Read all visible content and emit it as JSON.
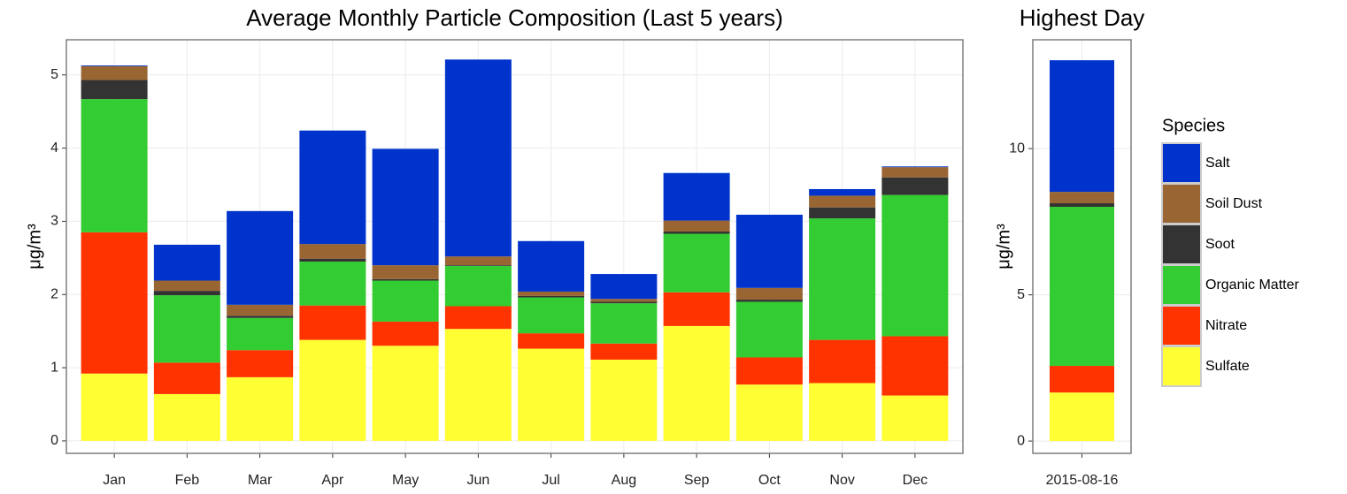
{
  "chart_data": [
    {
      "type": "bar",
      "stacked": true,
      "title": "Average Monthly Particle Composition (Last 5 years)",
      "y_label": "μg/m³",
      "categories": [
        "Jan",
        "Feb",
        "Mar",
        "Apr",
        "May",
        "Jun",
        "Jul",
        "Aug",
        "Sep",
        "Oct",
        "Nov",
        "Dec"
      ],
      "series": [
        {
          "name": "Sulfate",
          "color": "#ffff33",
          "values": [
            0.92,
            0.64,
            0.87,
            1.38,
            1.3,
            1.53,
            1.26,
            1.11,
            1.57,
            0.77,
            0.79,
            0.62
          ]
        },
        {
          "name": "Nitrate",
          "color": "#ff3300",
          "values": [
            1.93,
            0.43,
            0.37,
            0.47,
            0.33,
            0.31,
            0.21,
            0.22,
            0.46,
            0.37,
            0.59,
            0.81
          ]
        },
        {
          "name": "Organic Matter",
          "color": "#33cc33",
          "values": [
            1.82,
            0.92,
            0.44,
            0.6,
            0.56,
            0.55,
            0.49,
            0.55,
            0.8,
            0.76,
            1.66,
            1.93
          ]
        },
        {
          "name": "Soot",
          "color": "#333333",
          "values": [
            0.26,
            0.06,
            0.03,
            0.04,
            0.02,
            0.01,
            0.02,
            0.02,
            0.03,
            0.03,
            0.15,
            0.24
          ]
        },
        {
          "name": "Soil Dust",
          "color": "#996633",
          "values": [
            0.19,
            0.14,
            0.15,
            0.2,
            0.19,
            0.12,
            0.06,
            0.04,
            0.15,
            0.16,
            0.16,
            0.14
          ]
        },
        {
          "name": "Salt",
          "color": "#0033cc",
          "values": [
            0.01,
            0.49,
            1.28,
            1.55,
            1.59,
            2.69,
            0.69,
            0.34,
            0.65,
            1.0,
            0.09,
            0.01
          ]
        }
      ],
      "ylim": [
        -0.17,
        5.48
      ],
      "yticks": [
        0,
        1,
        2,
        3,
        4,
        5
      ],
      "grid": true
    },
    {
      "type": "bar",
      "stacked": true,
      "title": "Highest Day",
      "y_label": "μg/m³",
      "categories": [
        "2015-08-16"
      ],
      "series": [
        {
          "name": "Sulfate",
          "color": "#ffff33",
          "values": [
            1.66
          ]
        },
        {
          "name": "Nitrate",
          "color": "#ff3300",
          "values": [
            0.91
          ]
        },
        {
          "name": "Organic Matter",
          "color": "#33cc33",
          "values": [
            5.44
          ]
        },
        {
          "name": "Soot",
          "color": "#333333",
          "values": [
            0.12
          ]
        },
        {
          "name": "Soil Dust",
          "color": "#996633",
          "values": [
            0.39
          ]
        },
        {
          "name": "Salt",
          "color": "#0033cc",
          "values": [
            4.5
          ]
        }
      ],
      "ylim": [
        -0.42,
        13.72
      ],
      "yticks": [
        0,
        5,
        10
      ],
      "grid": true,
      "legend_title": "Species"
    }
  ]
}
